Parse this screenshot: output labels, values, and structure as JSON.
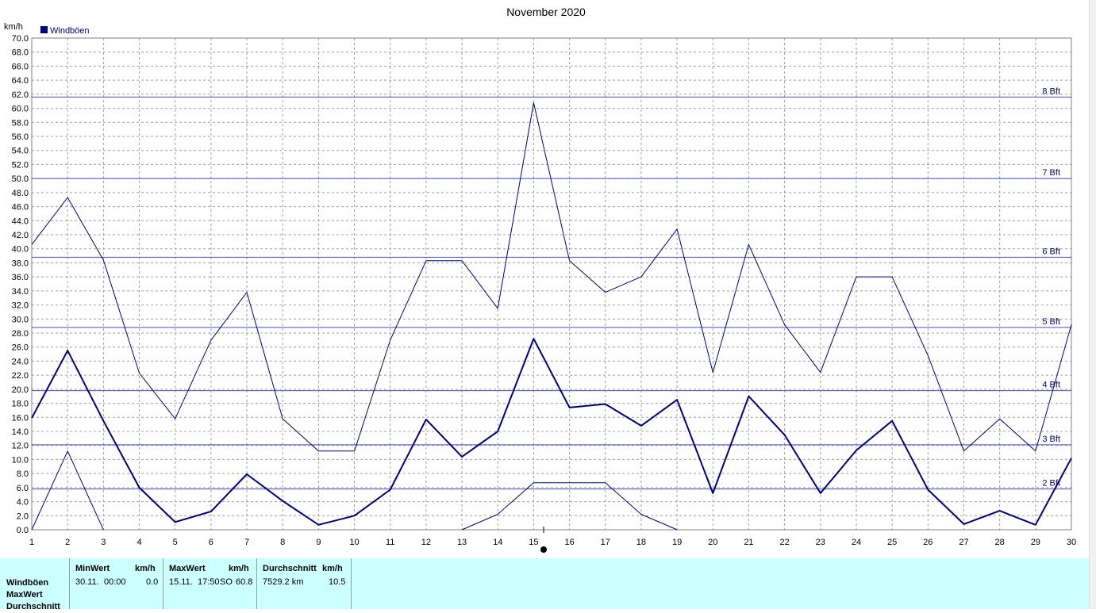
{
  "chart_data": {
    "type": "line",
    "title": "November 2020",
    "ylabel": "km/h",
    "ylim": [
      0,
      70
    ],
    "yticks": [
      "0.0",
      "2.0",
      "4.0",
      "6.0",
      "8.0",
      "10.0",
      "12.0",
      "14.0",
      "16.0",
      "18.0",
      "20.0",
      "22.0",
      "24.0",
      "26.0",
      "28.0",
      "30.0",
      "32.0",
      "34.0",
      "36.0",
      "38.0",
      "40.0",
      "42.0",
      "44.0",
      "46.0",
      "48.0",
      "50.0",
      "52.0",
      "54.0",
      "56.0",
      "58.0",
      "60.0",
      "62.0",
      "64.0",
      "66.0",
      "68.0",
      "70.0"
    ],
    "x": [
      1,
      2,
      3,
      4,
      5,
      6,
      7,
      8,
      9,
      10,
      11,
      12,
      13,
      14,
      15,
      16,
      17,
      18,
      19,
      20,
      21,
      22,
      23,
      24,
      25,
      26,
      27,
      28,
      29,
      30
    ],
    "xtick_labels": [
      "1",
      "2",
      "3",
      "4",
      "5",
      "6",
      "7",
      "8",
      "9",
      "10",
      "11",
      "12",
      "13",
      "14",
      "15",
      "16",
      "17",
      "18",
      "19",
      "20",
      "21",
      "22",
      "23",
      "24",
      "25",
      "26",
      "27",
      "28",
      "29",
      "30"
    ],
    "grid": true,
    "legend_position": "top-left",
    "legend": [
      {
        "label": "Windböen",
        "color": "#000080"
      }
    ],
    "series": [
      {
        "name": "Windböen",
        "values": [
          15.9,
          25.5,
          15.5,
          6.0,
          1.1,
          2.6,
          7.9,
          4.1,
          0.7,
          2.0,
          5.7,
          15.7,
          10.4,
          14.0,
          27.2,
          17.4,
          17.9,
          14.8,
          18.5,
          5.2,
          19.0,
          13.5,
          5.2,
          11.3,
          15.5,
          5.7,
          0.8,
          2.7,
          0.7,
          10.2
        ],
        "color": "#000080",
        "width": 2
      },
      {
        "values": [
          40.6,
          47.3,
          38.4,
          22.3,
          15.8,
          27.0,
          33.8,
          15.8,
          11.2,
          11.2,
          27.0,
          38.3,
          38.3,
          31.5,
          60.8,
          38.3,
          33.8,
          36.0,
          42.8,
          22.4,
          40.6,
          29.2,
          22.4,
          36.0,
          36.0,
          24.8,
          11.2,
          15.8,
          11.2,
          29.2
        ],
        "color": "#000080",
        "width": 1
      },
      {
        "values": [
          0.0,
          11.2,
          0.0,
          null,
          null,
          null,
          null,
          null,
          null,
          null,
          null,
          null,
          0.0,
          2.2,
          6.7,
          6.7,
          6.7,
          2.2,
          0.0,
          null,
          null,
          null,
          null,
          null,
          null,
          null,
          null,
          null,
          null,
          null
        ],
        "color": "#000080",
        "width": 1
      }
    ],
    "reference_lines": [
      {
        "value": 5.8,
        "label": "2 Bft"
      },
      {
        "value": 12.1,
        "label": "3 Bft"
      },
      {
        "value": 19.8,
        "label": "4 Bft"
      },
      {
        "value": 28.8,
        "label": "5 Bft"
      },
      {
        "value": 38.8,
        "label": "6 Bft"
      },
      {
        "value": 50.0,
        "label": "7 Bft"
      },
      {
        "value": 61.6,
        "label": "8 Bft"
      }
    ],
    "colors": {
      "line": "#000080",
      "ref_line": "#4a4ad0",
      "grid": "#a0a0a0",
      "axis_text": "#000000",
      "bft_text": "#000080"
    }
  },
  "stats_panel": {
    "background": "#ccffff",
    "row_labels": [
      "Windböen",
      "MaxWert",
      "Durchschnitt"
    ],
    "columns": [
      {
        "header": "MinWert",
        "unit": "km/h",
        "date": "30.11.",
        "time": "00:00",
        "value": "0.0"
      },
      {
        "header": "MaxWert",
        "unit": "km/h",
        "date": "15.11.",
        "time": "17:50",
        "dir": "SO",
        "value": "60.8"
      },
      {
        "header": "Durchschnitt",
        "unit": "km/h",
        "distance": "7529.2 km",
        "value": "10.5"
      }
    ]
  }
}
